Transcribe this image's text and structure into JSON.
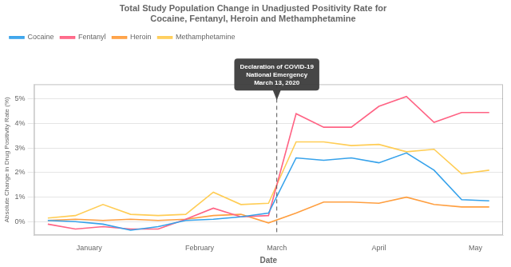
{
  "chart_data": {
    "type": "line",
    "title": "Total Study Population Change in Unadjusted Positivity Rate for\nCocaine, Fentanyl, Heroin and Methamphetamine",
    "xlabel": "Date",
    "ylabel": "Absolute Change in Drug Positivity Rate (%)",
    "x": [
      0,
      1,
      2,
      3,
      4,
      5,
      6,
      7,
      8,
      9,
      10,
      11,
      12,
      13,
      14,
      15,
      16
    ],
    "series": [
      {
        "name": "Cocaine",
        "values": [
          0.05,
          0.0,
          -0.1,
          -0.35,
          -0.2,
          0.05,
          0.1,
          0.2,
          0.35,
          2.6,
          2.5,
          2.6,
          2.4,
          2.8,
          2.1,
          0.9,
          0.85
        ]
      },
      {
        "name": "Fentanyl",
        "values": [
          -0.1,
          -0.3,
          -0.2,
          -0.3,
          -0.3,
          0.1,
          0.55,
          0.2,
          0.25,
          4.4,
          3.85,
          3.85,
          4.7,
          5.1,
          4.05,
          4.45,
          4.45
        ]
      },
      {
        "name": "Heroin",
        "values": [
          0.05,
          0.1,
          0.05,
          0.1,
          0.05,
          0.1,
          0.25,
          0.3,
          -0.05,
          0.35,
          0.8,
          0.8,
          0.75,
          1.0,
          0.7,
          0.6,
          0.6
        ]
      },
      {
        "name": "Methamphetamine",
        "values": [
          0.15,
          0.25,
          0.7,
          0.3,
          0.25,
          0.3,
          1.2,
          0.7,
          0.75,
          3.25,
          3.25,
          3.1,
          3.15,
          2.85,
          2.95,
          1.95,
          2.1
        ]
      }
    ],
    "xlim": [
      -0.5,
      16.5
    ],
    "xticks": [
      {
        "value": 1.5,
        "label": "January"
      },
      {
        "value": 5.5,
        "label": "February"
      },
      {
        "value": 8.3,
        "label": "March"
      },
      {
        "value": 12,
        "label": "April"
      },
      {
        "value": 15.5,
        "label": "May"
      }
    ],
    "ylim": [
      -0.55,
      5.6
    ],
    "yticks": [
      {
        "value": 0,
        "label": "0%"
      },
      {
        "value": 1,
        "label": "1%"
      },
      {
        "value": 2,
        "label": "2%"
      },
      {
        "value": 3,
        "label": "3%"
      },
      {
        "value": 4,
        "label": "4%"
      },
      {
        "value": 5,
        "label": "5%"
      }
    ],
    "grid": "y",
    "legend": "upper left",
    "vlines": [
      8.3
    ],
    "annotations": [
      {
        "text": "Declaration of COVID-19\nNational Emergency\nMarch 13, 2020",
        "x": 8.3,
        "y": 4.95
      }
    ]
  }
}
